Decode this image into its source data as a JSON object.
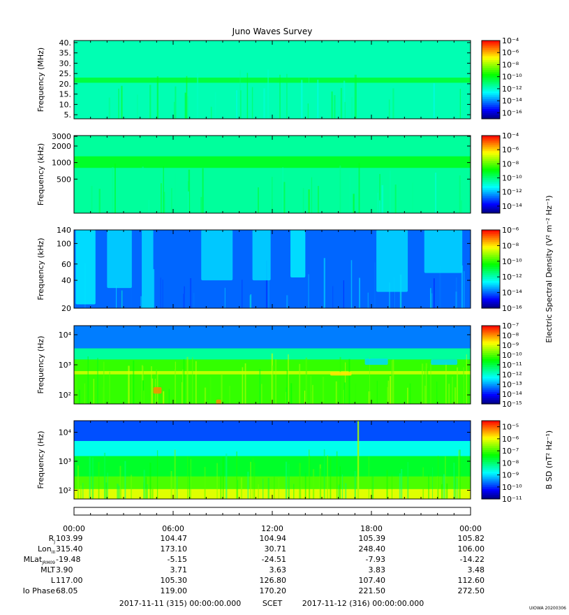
{
  "title": "Juno Waves Survey",
  "stamp": "UIOWA 20200306",
  "footer": {
    "start": "2017-11-11 (315) 00:00:00.000",
    "scet": "SCET",
    "end": "2017-11-12 (316) 00:00:00.000"
  },
  "ephemeris": {
    "time_ticks": [
      "00:00",
      "06:00",
      "12:00",
      "18:00",
      "00:00"
    ],
    "rows": [
      {
        "label": "R",
        "sub": "J",
        "values": [
          "103.99",
          "104.47",
          "104.94",
          "105.39",
          "105.82"
        ]
      },
      {
        "label": "Lon",
        "sub": "III",
        "values": [
          "315.40",
          "173.10",
          "30.71",
          "248.40",
          "106.00"
        ]
      },
      {
        "label": "MLat",
        "sub": "JRM09",
        "values": [
          "-19.48",
          "-5.15",
          "-24.51",
          "-7.93",
          "-14.22"
        ]
      },
      {
        "label": "MLT",
        "sub": "",
        "values": [
          "3.90",
          "3.71",
          "3.63",
          "3.83",
          "3.48"
        ]
      },
      {
        "label": "L",
        "sub": "",
        "values": [
          "117.00",
          "105.30",
          "126.80",
          "107.40",
          "112.60"
        ]
      },
      {
        "label": "Io Phase",
        "sub": "",
        "values": [
          "68.05",
          "119.00",
          "170.20",
          "221.50",
          "272.50"
        ]
      }
    ]
  },
  "colormap": [
    "#00007f",
    "#0000ff",
    "#0080ff",
    "#00ffff",
    "#00ff80",
    "#00ff00",
    "#80ff00",
    "#ffff00",
    "#ff8000",
    "#ff0000"
  ],
  "chart_data": [
    {
      "type": "heatmap",
      "title": "Juno Waves Survey",
      "ylabel": "Frequency (MHz)",
      "yscale": "linear",
      "yticks": [
        {
          "v": 5,
          "t": "5."
        },
        {
          "v": 10,
          "t": "10."
        },
        {
          "v": 15,
          "t": "15."
        },
        {
          "v": 20,
          "t": "20."
        },
        {
          "v": 25,
          "t": "25."
        },
        {
          "v": 30,
          "t": "30."
        },
        {
          "v": 35,
          "t": "35."
        },
        {
          "v": 40,
          "t": "40."
        }
      ],
      "ylim": [
        3,
        41
      ],
      "xlim_hours": [
        0,
        24
      ],
      "colorbar": {
        "label": "",
        "min_exp": -17,
        "max_exp": -4,
        "ticks": [
          -4,
          -6,
          -8,
          -10,
          -12,
          -14,
          -16
        ]
      },
      "bands": [
        {
          "y0": 20.5,
          "y1": 23,
          "level": 0.5
        }
      ],
      "features": [],
      "base_level": 0.4
    },
    {
      "type": "heatmap",
      "ylabel": "Frequency (kHz)",
      "yscale": "log",
      "yticks": [
        {
          "v": 500,
          "t": "500"
        },
        {
          "v": 1000,
          "t": "1000"
        },
        {
          "v": 2000,
          "t": "2000"
        },
        {
          "v": 3000,
          "t": "3000"
        }
      ],
      "ylim": [
        120,
        3100
      ],
      "xlim_hours": [
        0,
        24
      ],
      "colorbar": {
        "label": "",
        "min_exp": -15,
        "max_exp": -4,
        "ticks": [
          -4,
          -6,
          -8,
          -10,
          -12,
          -14
        ]
      },
      "bands": [
        {
          "y0": 800,
          "y1": 1300,
          "level": 0.52
        }
      ],
      "features": [],
      "base_level": 0.42
    },
    {
      "type": "heatmap",
      "ylabel": "Frequency (kHz)",
      "yscale": "log",
      "yticks": [
        {
          "v": 20,
          "t": "20"
        },
        {
          "v": 40,
          "t": "40"
        },
        {
          "v": 60,
          "t": "60"
        },
        {
          "v": 100,
          "t": "100"
        },
        {
          "v": 140,
          "t": "140"
        }
      ],
      "ylim": [
        20,
        140
      ],
      "xlim_hours": [
        0,
        24
      ],
      "colorbar": {
        "label": "Electric Spectral Density (V² m⁻² Hz⁻¹)",
        "min_exp": -16,
        "max_exp": -6,
        "ticks": [
          -6,
          -8,
          -10,
          -12,
          -14,
          -16
        ]
      },
      "bands": [],
      "features": [
        {
          "x0": 0.1,
          "x1": 1.3,
          "y0": 22,
          "y1": 140,
          "level": 0.32
        },
        {
          "x0": 2.0,
          "x1": 3.5,
          "y0": 33,
          "y1": 140,
          "level": 0.3
        },
        {
          "x0": 4.1,
          "x1": 4.8,
          "y0": 20,
          "y1": 140,
          "level": 0.3
        },
        {
          "x0": 7.7,
          "x1": 9.6,
          "y0": 40,
          "y1": 140,
          "level": 0.3
        },
        {
          "x0": 10.8,
          "x1": 11.9,
          "y0": 40,
          "y1": 140,
          "level": 0.3
        },
        {
          "x0": 13.1,
          "x1": 14.0,
          "y0": 43,
          "y1": 140,
          "level": 0.32
        },
        {
          "x0": 18.3,
          "x1": 20.2,
          "y0": 30,
          "y1": 140,
          "level": 0.3
        },
        {
          "x0": 21.2,
          "x1": 23.5,
          "y0": 48,
          "y1": 140,
          "level": 0.3
        }
      ],
      "base_level": 0.2
    },
    {
      "type": "heatmap",
      "ylabel": "Frequency (Hz)",
      "yscale": "log",
      "yticks": [
        {
          "v": 100,
          "t": "10²"
        },
        {
          "v": 1000,
          "t": "10³"
        },
        {
          "v": 10000,
          "t": "10⁴"
        }
      ],
      "ylim": [
        50,
        20000
      ],
      "xlim_hours": [
        0,
        24
      ],
      "colorbar": {
        "label": "",
        "min_exp": -15,
        "max_exp": -7,
        "ticks": [
          -7,
          -8,
          -9,
          -10,
          -11,
          -12,
          -13,
          -14,
          -15
        ]
      },
      "bands": [
        {
          "y0": 3500,
          "y1": 20000,
          "level": 0.22
        },
        {
          "y0": 1500,
          "y1": 3500,
          "level": 0.42
        },
        {
          "y0": 50,
          "y1": 1500,
          "level": 0.6
        },
        {
          "y0": 480,
          "y1": 620,
          "level": 0.72
        }
      ],
      "features": [
        {
          "x0": 4.8,
          "x1": 5.3,
          "y0": 110,
          "y1": 180,
          "level": 0.88
        },
        {
          "x0": 8.6,
          "x1": 8.9,
          "y0": 50,
          "y1": 70,
          "level": 0.88
        },
        {
          "x0": 15.5,
          "x1": 16.8,
          "y0": 440,
          "y1": 580,
          "level": 0.8
        },
        {
          "x0": 17.6,
          "x1": 19.0,
          "y0": 1000,
          "y1": 1600,
          "level": 0.3
        },
        {
          "x0": 21.6,
          "x1": 23.2,
          "y0": 1000,
          "y1": 1500,
          "level": 0.3
        }
      ],
      "base_level": 0.6
    },
    {
      "type": "heatmap",
      "ylabel": "Frequency (Hz)",
      "yscale": "log",
      "yticks": [
        {
          "v": 100,
          "t": "10²"
        },
        {
          "v": 1000,
          "t": "10³"
        },
        {
          "v": 10000,
          "t": "10⁴"
        }
      ],
      "ylim": [
        50,
        25000
      ],
      "xlim_hours": [
        0,
        24
      ],
      "colorbar": {
        "label": "B SD (nT² Hz⁻¹)",
        "min_exp": -11,
        "max_exp": -4.5,
        "ticks": [
          -5,
          -6,
          -7,
          -8,
          -9,
          -10,
          -11
        ]
      },
      "bands": [
        {
          "y0": 5000,
          "y1": 25000,
          "level": 0.18
        },
        {
          "y0": 1500,
          "y1": 5000,
          "level": 0.35
        },
        {
          "y0": 300,
          "y1": 1500,
          "level": 0.52
        },
        {
          "y0": 110,
          "y1": 300,
          "level": 0.62
        },
        {
          "y0": 50,
          "y1": 110,
          "level": 0.75
        }
      ],
      "features": [
        {
          "x0": 17.15,
          "x1": 17.25,
          "y0": 50,
          "y1": 25000,
          "level": 0.7
        }
      ],
      "base_level": 0.5
    }
  ]
}
